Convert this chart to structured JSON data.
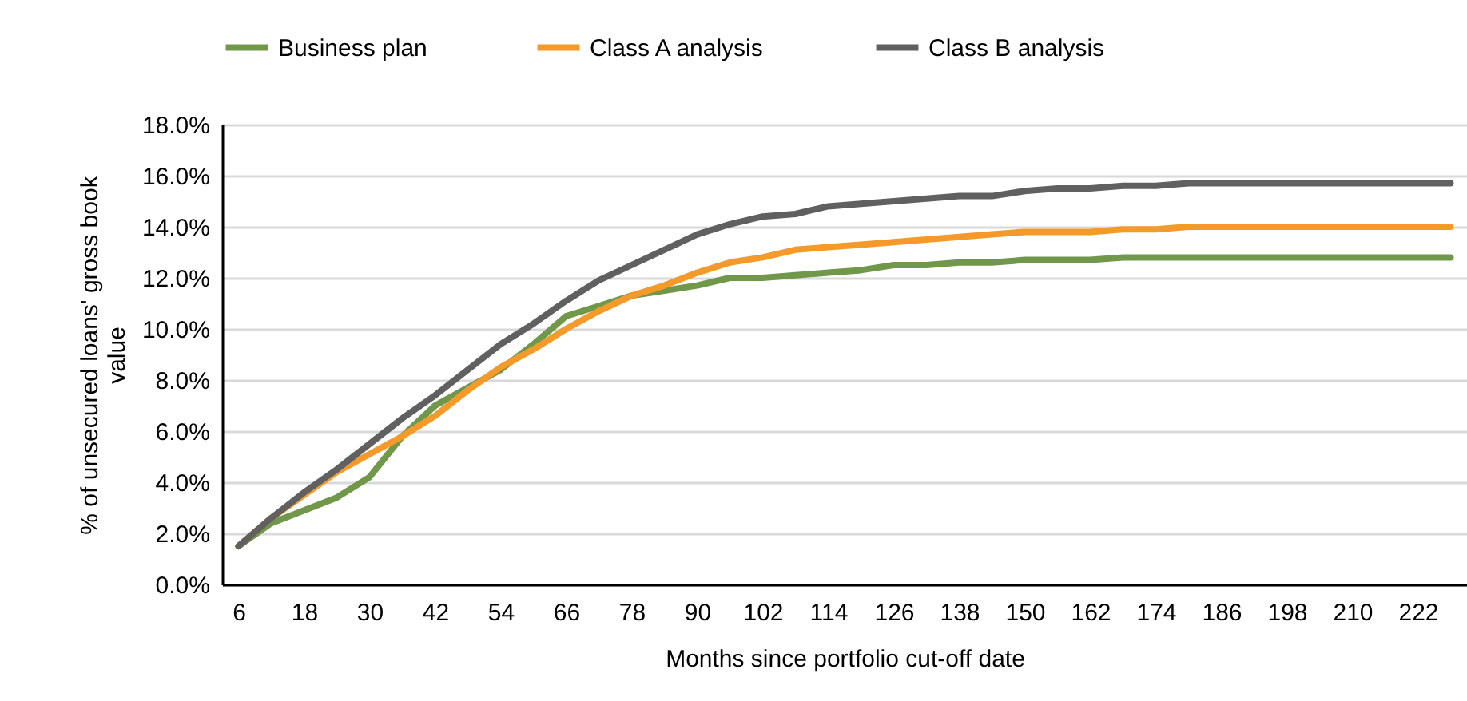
{
  "chart_data": {
    "type": "line",
    "xlabel": "Months since portfolio cut-off date",
    "ylabel": "% of unsecured loans' gross book value",
    "x": [
      6,
      12,
      18,
      24,
      30,
      36,
      42,
      48,
      54,
      60,
      66,
      72,
      78,
      84,
      90,
      96,
      102,
      108,
      114,
      120,
      126,
      132,
      138,
      144,
      150,
      156,
      162,
      168,
      174,
      180,
      186,
      192,
      198,
      204,
      210,
      216,
      222,
      228
    ],
    "xlim": [
      3,
      231
    ],
    "xticks": [
      6,
      18,
      30,
      42,
      54,
      66,
      78,
      90,
      102,
      114,
      126,
      138,
      150,
      162,
      174,
      186,
      198,
      210,
      222
    ],
    "ylim": [
      0,
      18
    ],
    "yticks": [
      {
        "value": 0,
        "label": "0.0%"
      },
      {
        "value": 2,
        "label": "2.0%"
      },
      {
        "value": 4,
        "label": "4.0%"
      },
      {
        "value": 6,
        "label": "6.0%"
      },
      {
        "value": 8,
        "label": "8.0%"
      },
      {
        "value": 10,
        "label": "10.0%"
      },
      {
        "value": 12,
        "label": "12.0%"
      },
      {
        "value": 14,
        "label": "14.0%"
      },
      {
        "value": 16,
        "label": "16.0%"
      },
      {
        "value": 18,
        "label": "18.0%"
      }
    ],
    "grid": "y",
    "legend": "top",
    "line_style": "solid",
    "series": [
      {
        "name": "Business plan",
        "color": "#70974a",
        "values": [
          1.5,
          2.4,
          2.9,
          3.4,
          4.2,
          5.8,
          7.0,
          7.7,
          8.4,
          9.4,
          10.5,
          10.9,
          11.3,
          11.5,
          11.7,
          12.0,
          12.0,
          12.1,
          12.2,
          12.3,
          12.5,
          12.5,
          12.6,
          12.6,
          12.7,
          12.7,
          12.7,
          12.8,
          12.8,
          12.8,
          12.8,
          12.8,
          12.8,
          12.8,
          12.8,
          12.8,
          12.8,
          12.8
        ]
      },
      {
        "name": "Class A analysis",
        "color": "#f39a2b",
        "values": [
          1.5,
          2.6,
          3.5,
          4.4,
          5.1,
          5.8,
          6.6,
          7.6,
          8.5,
          9.2,
          10.0,
          10.7,
          11.3,
          11.7,
          12.2,
          12.6,
          12.8,
          13.1,
          13.2,
          13.3,
          13.4,
          13.5,
          13.6,
          13.7,
          13.8,
          13.8,
          13.8,
          13.9,
          13.9,
          14.0,
          14.0,
          14.0,
          14.0,
          14.0,
          14.0,
          14.0,
          14.0,
          14.0
        ]
      },
      {
        "name": "Class B analysis",
        "color": "#606060",
        "values": [
          1.5,
          2.6,
          3.6,
          4.5,
          5.5,
          6.5,
          7.4,
          8.4,
          9.4,
          10.2,
          11.1,
          11.9,
          12.5,
          13.1,
          13.7,
          14.1,
          14.4,
          14.5,
          14.8,
          14.9,
          15.0,
          15.1,
          15.2,
          15.2,
          15.4,
          15.5,
          15.5,
          15.6,
          15.6,
          15.7,
          15.7,
          15.7,
          15.7,
          15.7,
          15.7,
          15.7,
          15.7,
          15.7
        ]
      }
    ]
  }
}
